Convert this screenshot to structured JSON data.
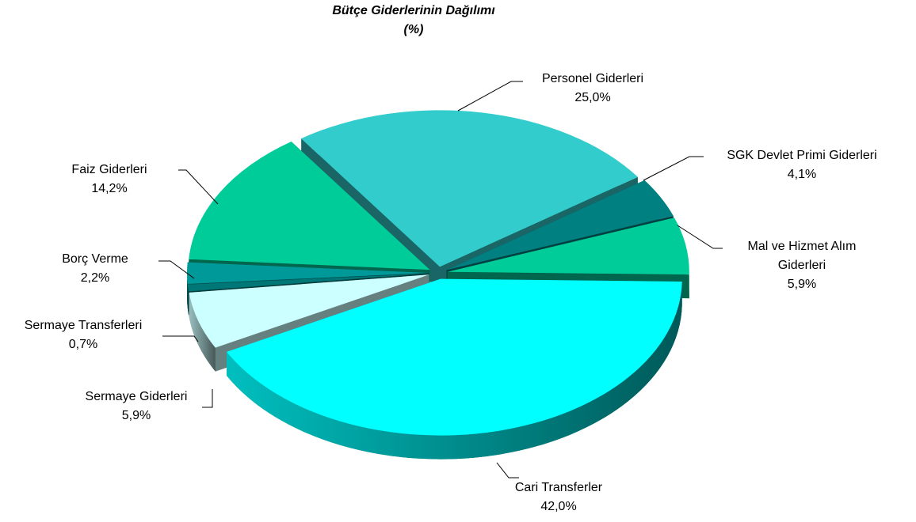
{
  "chart_data": {
    "type": "pie3d",
    "title": "Bütçe Giderlerinin Dağılımı",
    "subtitle": "(%)",
    "categories": [
      "Personel Giderleri",
      "SGK Devlet Primi Giderleri",
      "Mal ve Hizmet Alım Giderleri",
      "Cari Transferler",
      "Sermaye Giderleri",
      "Sermaye Transferleri",
      "Borç Verme",
      "Faiz Giderleri"
    ],
    "values": [
      25.0,
      4.1,
      5.9,
      42.0,
      5.9,
      0.7,
      2.2,
      14.2
    ],
    "value_labels": [
      "25,0%",
      "4,1%",
      "5,9%",
      "42,0%",
      "5,9%",
      "0,7%",
      "2,2%",
      "14,2%"
    ],
    "colors": [
      "#33cccc",
      "#008080",
      "#00cc99",
      "#00ffff",
      "#ccffff",
      "#007777",
      "#009999",
      "#00cc99"
    ]
  }
}
